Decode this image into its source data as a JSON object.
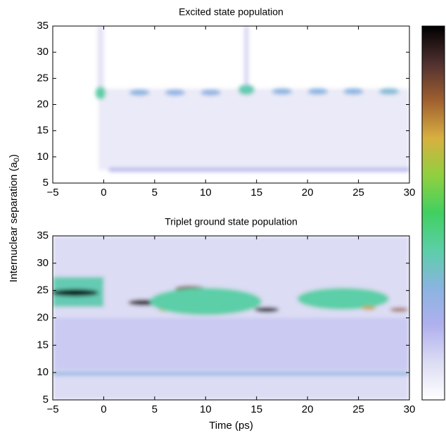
{
  "chart_data": [
    {
      "type": "heatmap",
      "title": "Excited state population",
      "xlim": [
        -5,
        30
      ],
      "ylim": [
        5,
        35
      ],
      "xticks": [
        {
          "value": -5,
          "label": "−5"
        },
        0,
        5,
        10,
        15,
        20,
        25,
        30
      ],
      "yticks": [
        5,
        10,
        15,
        20,
        25,
        30,
        35
      ],
      "regions": [
        {
          "x": [
            -0.5,
            30
          ],
          "y": [
            7.5,
            23
          ],
          "level": 0.06
        },
        {
          "x": [
            0.5,
            30
          ],
          "y": [
            7.2,
            7.9
          ],
          "level": 0.2
        },
        {
          "x": [
            -0.6,
            0
          ],
          "y": [
            23,
            35
          ],
          "level": 0.08
        },
        {
          "x": [
            13.8,
            14.2
          ],
          "y": [
            23,
            35
          ],
          "level": 0.12
        }
      ],
      "spots": [
        {
          "x": -0.3,
          "y": 22.2,
          "w": 1.0,
          "h": 2.5,
          "level": 0.4
        },
        {
          "x": 3.5,
          "y": 22.3,
          "w": 2.0,
          "h": 1.2,
          "level": 0.3
        },
        {
          "x": 7.0,
          "y": 22.3,
          "w": 2.0,
          "h": 1.2,
          "level": 0.28
        },
        {
          "x": 10.5,
          "y": 22.3,
          "w": 2.0,
          "h": 1.2,
          "level": 0.28
        },
        {
          "x": 14.0,
          "y": 22.8,
          "w": 1.6,
          "h": 2.0,
          "level": 0.38
        },
        {
          "x": 17.5,
          "y": 22.5,
          "w": 2.0,
          "h": 1.2,
          "level": 0.3
        },
        {
          "x": 21.0,
          "y": 22.5,
          "w": 2.0,
          "h": 1.2,
          "level": 0.3
        },
        {
          "x": 24.5,
          "y": 22.5,
          "w": 2.0,
          "h": 1.2,
          "level": 0.3
        },
        {
          "x": 28.0,
          "y": 22.5,
          "w": 2.0,
          "h": 1.2,
          "level": 0.32
        }
      ]
    },
    {
      "type": "heatmap",
      "title": "Triplet ground state population",
      "xlabel": "Time (ps)",
      "xlim": [
        -5,
        30
      ],
      "ylim": [
        5,
        35
      ],
      "xticks": [
        {
          "value": -5,
          "label": "−5"
        },
        0,
        5,
        10,
        15,
        20,
        25,
        30
      ],
      "yticks": [
        5,
        10,
        15,
        20,
        25,
        30,
        35
      ],
      "regions": [
        {
          "x": [
            -5,
            30
          ],
          "y": [
            5,
            35
          ],
          "level": 0.1
        },
        {
          "x": [
            -5,
            30
          ],
          "y": [
            10.5,
            20
          ],
          "level": 0.14
        },
        {
          "x": [
            -5,
            30
          ],
          "y": [
            9.5,
            10.1
          ],
          "level": 0.3
        },
        {
          "x": [
            -5,
            0
          ],
          "y": [
            22,
            27.5
          ],
          "level": 0.38
        }
      ],
      "spots": [
        {
          "x": -2.8,
          "y": 24.6,
          "w": 4.6,
          "h": 1.3,
          "level": 1.0
        },
        {
          "x": 4.0,
          "y": 22.8,
          "w": 3.2,
          "h": 1.1,
          "level": 0.95
        },
        {
          "x": 8.5,
          "y": 25.3,
          "w": 3.0,
          "h": 1.1,
          "level": 0.85
        },
        {
          "x": 6.0,
          "y": 21.5,
          "w": 1.2,
          "h": 0.7,
          "level": 0.7
        },
        {
          "x": 10.0,
          "y": 23.0,
          "w": 11.0,
          "h": 5.0,
          "level": 0.4
        },
        {
          "x": 16.0,
          "y": 21.5,
          "w": 2.4,
          "h": 0.9,
          "level": 1.0
        },
        {
          "x": 22.0,
          "y": 22.5,
          "w": 1.2,
          "h": 0.7,
          "level": 0.75
        },
        {
          "x": 23.5,
          "y": 23.5,
          "w": 9.0,
          "h": 4.0,
          "level": 0.4
        },
        {
          "x": 26.0,
          "y": 21.8,
          "w": 1.4,
          "h": 0.7,
          "level": 0.72
        },
        {
          "x": 29.0,
          "y": 21.5,
          "w": 1.8,
          "h": 0.7,
          "level": 0.8
        }
      ]
    }
  ],
  "ylabel": {
    "text": "Internuclear separation (a",
    "subscript": "0",
    "suffix": ")"
  },
  "colormap": [
    "#ffffff",
    "#dcdcf4",
    "#b0b0ee",
    "#8ab4e0",
    "#5ccfa8",
    "#40d060",
    "#90d040",
    "#d8b040",
    "#a06030",
    "#503030",
    "#000000"
  ]
}
